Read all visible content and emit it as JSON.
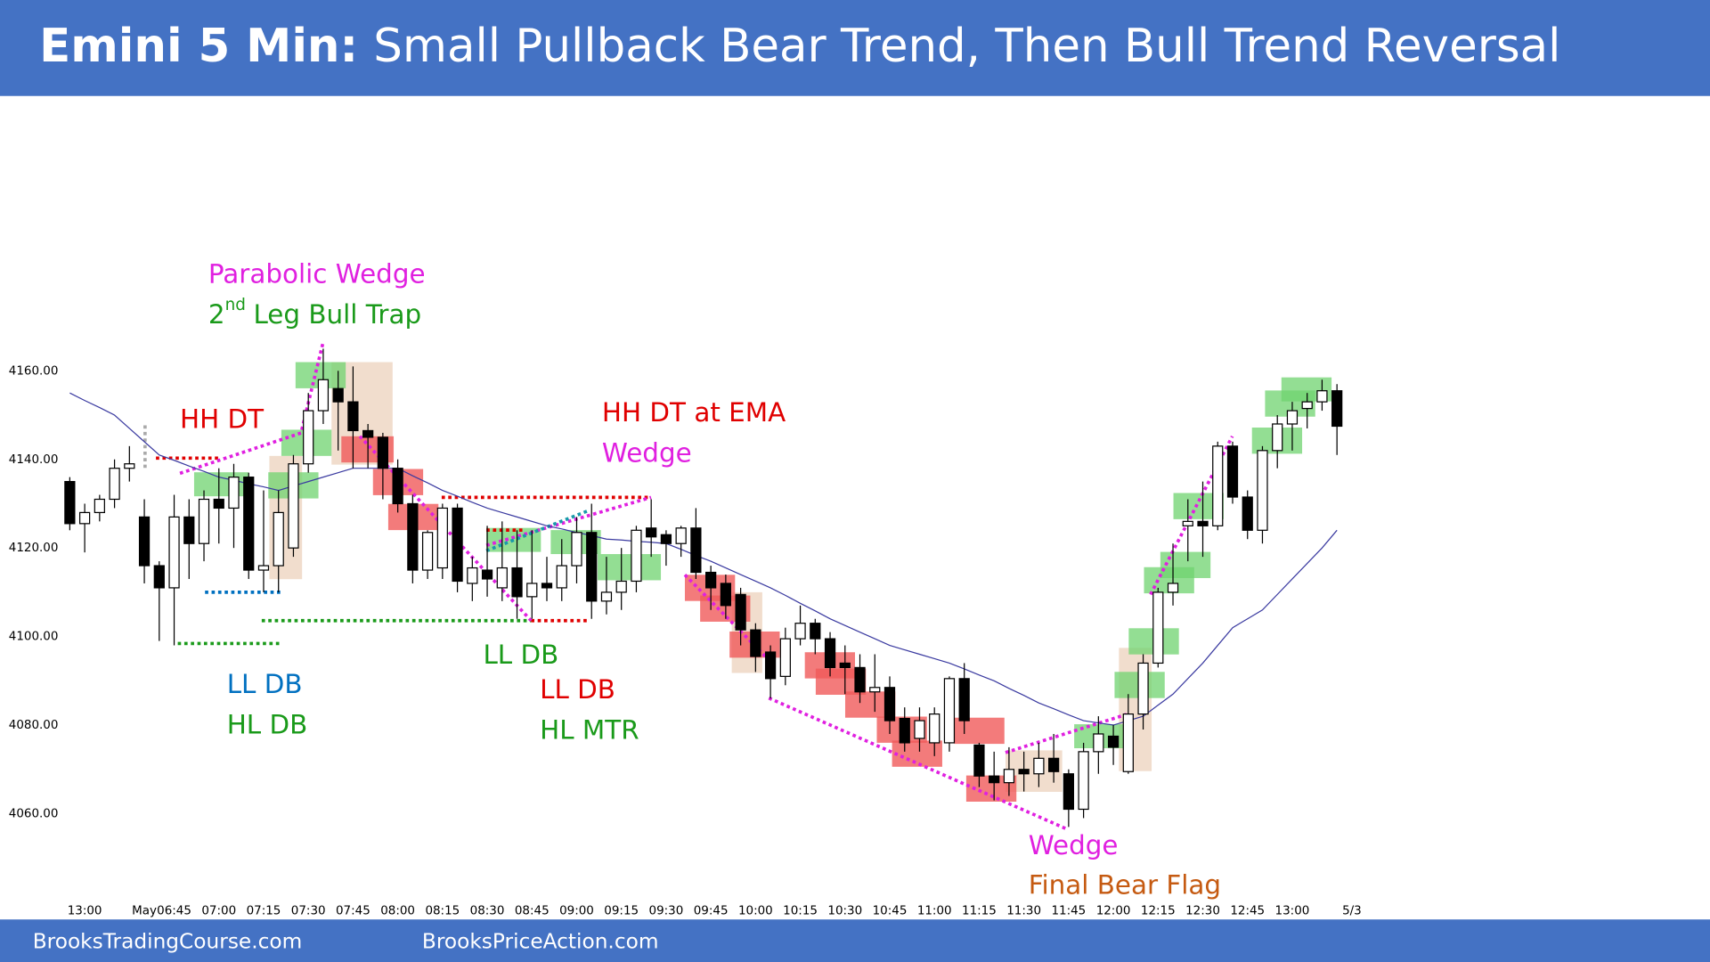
{
  "chart_data": {
    "type": "candlestick",
    "title": "Emini 5 Min:",
    "subtitle": "Small Pullback Bear Trend, Then Bull Trend Reversal",
    "categories": [
      null,
      "13:00",
      null,
      null,
      null,
      "May",
      null,
      "06:45",
      null,
      null,
      "07:00",
      null,
      null,
      "07:15",
      null,
      null,
      "07:30",
      null,
      null,
      "07:45",
      null,
      null,
      "08:00",
      null,
      null,
      "08:15",
      null,
      null,
      "08:30",
      null,
      null,
      "08:45",
      null,
      null,
      "09:00",
      null,
      null,
      "09:15",
      null,
      null,
      "09:30",
      null,
      null,
      "09:45",
      null,
      null,
      "10:00",
      null,
      null,
      "10:15",
      null,
      null,
      "10:30",
      null,
      null,
      "10:45",
      null,
      null,
      "11:00",
      null,
      null,
      "11:15",
      null,
      null,
      "11:30",
      null,
      null,
      "11:45",
      null,
      null,
      "12:00",
      null,
      null,
      "12:15",
      null,
      null,
      "12:30",
      null,
      null,
      "12:45",
      null,
      null,
      "13:00",
      null,
      null,
      null,
      "5/3"
    ],
    "open": [
      4135,
      4125.5,
      4128,
      4131,
      4138,
      4127,
      4116,
      4111,
      4127,
      4121,
      4131,
      4129,
      4136,
      4115,
      4116,
      4120,
      4139,
      4151,
      4156,
      4153,
      4146.5,
      4145,
      4138,
      4130,
      4115,
      4115.5,
      4129,
      4112,
      4115,
      4111,
      4115.5,
      4109,
      4112,
      4111,
      4116,
      4123.5,
      4108,
      4110,
      4112.5,
      4124.5,
      4123,
      4121,
      4124.5,
      4114.5,
      4112,
      4109.5,
      4101.5,
      4096.5,
      4091,
      4099.5,
      4103,
      4099.5,
      4094,
      4093,
      4087.5,
      4088.5,
      4081.5,
      4077,
      4076,
      4076,
      4090.5,
      4075.5,
      4068.5,
      4067,
      4070,
      4069,
      4072.5,
      4069,
      4061,
      4074,
      4077.5,
      4069.5,
      4082.5,
      4094,
      4110,
      4125,
      4126,
      4125,
      4143,
      4131.5,
      4124,
      4142,
      4148,
      4151.5,
      4153,
      4155.5,
      null
    ],
    "high": [
      4136,
      4130,
      4132,
      4140,
      4143,
      4131,
      4117,
      4132,
      4131,
      4133,
      4138,
      4139,
      4137,
      4133,
      4133,
      4141,
      4155,
      4165,
      4160,
      4161,
      4148,
      4146,
      4140,
      4132,
      4124,
      4130,
      4130,
      4118,
      4125,
      4126,
      4124,
      4124,
      4118,
      4122,
      4127,
      4130,
      4118,
      4120,
      4125,
      4131,
      4124,
      4125,
      4129,
      4116,
      4114,
      4111,
      4103,
      4098,
      4102,
      4107,
      4104,
      4101,
      4098,
      4096,
      4096,
      4091,
      4084,
      4084,
      4084,
      4091,
      4094,
      4076,
      4074,
      4075,
      4074,
      4076,
      4078,
      4070,
      4076,
      4082,
      4080,
      4087,
      4096,
      4111,
      4121,
      4131,
      4135,
      4144,
      4144,
      4133,
      4143,
      4150,
      4153,
      4155,
      4158,
      4157,
      null
    ],
    "low": [
      4124,
      4119,
      4126,
      4129,
      4135,
      4112,
      4099,
      4098,
      4113,
      4117,
      4121,
      4120,
      4113,
      4110,
      4110,
      4118,
      4137,
      4148,
      4142,
      4138,
      4138,
      4131,
      4128,
      4112,
      4113,
      4113,
      4110,
      4108,
      4109,
      4108,
      4104,
      4104,
      4108,
      4108,
      4112,
      4104,
      4105,
      4106,
      4110,
      4118,
      4116,
      4118,
      4113,
      4106,
      4104,
      4098,
      4092,
      4086,
      4089,
      4098,
      4096,
      4091,
      4087,
      4085,
      4083,
      4078,
      4074,
      4074,
      4073,
      4074,
      4078,
      4066,
      4063,
      4064,
      4065,
      4066,
      4067,
      4057,
      4059,
      4069,
      4071,
      4069,
      4079,
      4093,
      4107,
      4117,
      4118,
      4124,
      4130,
      4122,
      4121,
      4138,
      4142,
      4147,
      4151,
      4141,
      null
    ],
    "close": [
      4125.5,
      4128,
      4131,
      4138,
      4139,
      4116,
      4111,
      4127,
      4121,
      4131,
      4129,
      4136,
      4115,
      4116,
      4128,
      4139,
      4151,
      4158,
      4153,
      4146.5,
      4145,
      4138,
      4130,
      4115,
      4123.5,
      4129,
      4112.5,
      4115.5,
      4113,
      4115.5,
      4109,
      4112,
      4111,
      4116,
      4123.5,
      4108,
      4110,
      4112.5,
      4124,
      4122.5,
      4121,
      4124.5,
      4114.5,
      4111,
      4107,
      4101.5,
      4095.5,
      4090.5,
      4099.5,
      4103,
      4099.5,
      4093,
      4093,
      4087.5,
      4088.5,
      4081,
      4076,
      4081,
      4082.5,
      4090.5,
      4081,
      4068.5,
      4067,
      4070,
      4069,
      4072.5,
      4069.5,
      4061,
      4074,
      4078,
      4075,
      4082.5,
      4094,
      4110,
      4112,
      4126,
      4125,
      4143,
      4131.5,
      4124,
      4142,
      4148,
      4151,
      4153,
      4155.5,
      4147.5,
      null
    ],
    "up_color": "#ffffff",
    "down_color": "#000000",
    "ema": {
      "color": "#3a3aa0",
      "values": [
        4155,
        4153.3,
        4151.7,
        4150,
        4147,
        4144,
        4141,
        4139.8,
        4138.5,
        4137.3,
        4136,
        4135.3,
        4134.5,
        4133.8,
        4133,
        4134,
        4135,
        4136,
        4137,
        4138,
        4138,
        4138,
        4138,
        4136.3,
        4134.7,
        4133,
        4131.7,
        4130.3,
        4129,
        4128,
        4127,
        4126,
        4125,
        4124.3,
        4123.5,
        4122.8,
        4122,
        4121.8,
        4121.5,
        4121.3,
        4121,
        4119.7,
        4118.3,
        4117,
        4115.5,
        4114,
        4112.5,
        4111,
        4109.3,
        4107.5,
        4105.8,
        4104,
        4102.5,
        4101,
        4099.5,
        4098,
        4097,
        4096,
        4095,
        4094,
        4092.7,
        4091.3,
        4090,
        4088.3,
        4086.7,
        4085,
        4083.7,
        4082.3,
        4081,
        4080.5,
        4080,
        4081,
        4082,
        4084.5,
        4087,
        4090.5,
        4094,
        4098,
        4102,
        4104,
        4106,
        4109.5,
        4113,
        4116.5,
        4120,
        4124,
        null
      ]
    },
    "ylim": [
      4060,
      4160
    ],
    "yticks": [
      {
        "value": 4060,
        "label": "4060.00"
      },
      {
        "value": 4080,
        "label": "4080.00"
      },
      {
        "value": 4100,
        "label": "4100.00"
      },
      {
        "value": 4120,
        "label": "4120.00"
      },
      {
        "value": 4140,
        "label": "4140.00"
      },
      {
        "value": 4160,
        "label": "4160.00"
      }
    ],
    "grid": false,
    "annotations": [
      {
        "text": "Parabolic Wedge",
        "color": "#e020e0"
      },
      {
        "text": "2",
        "superscript": "nd",
        "text_after": "Leg Bull Trap",
        "color": "#1a9a1a"
      },
      {
        "text": "HH DT",
        "color": "#e00000"
      },
      {
        "text": "LL DB",
        "color": "#0070c0"
      },
      {
        "text": "HL DB",
        "color": "#1a9a1a"
      },
      {
        "text": "LL DB",
        "color": "#1a9a1a"
      },
      {
        "text": "LL DB",
        "color": "#e00000"
      },
      {
        "text": "HL MTR",
        "color": "#1a9a1a"
      },
      {
        "text": "HH DT at EMA",
        "color": "#e00000"
      },
      {
        "text": "Wedge",
        "color": "#e020e0"
      },
      {
        "text": "Wedge",
        "color": "#e020e0"
      },
      {
        "text": "Final Bear Flag",
        "color": "#c55a11"
      }
    ]
  },
  "footer": {
    "left": "BrooksTradingCourse.com",
    "right": "BrooksPriceAction.com"
  }
}
